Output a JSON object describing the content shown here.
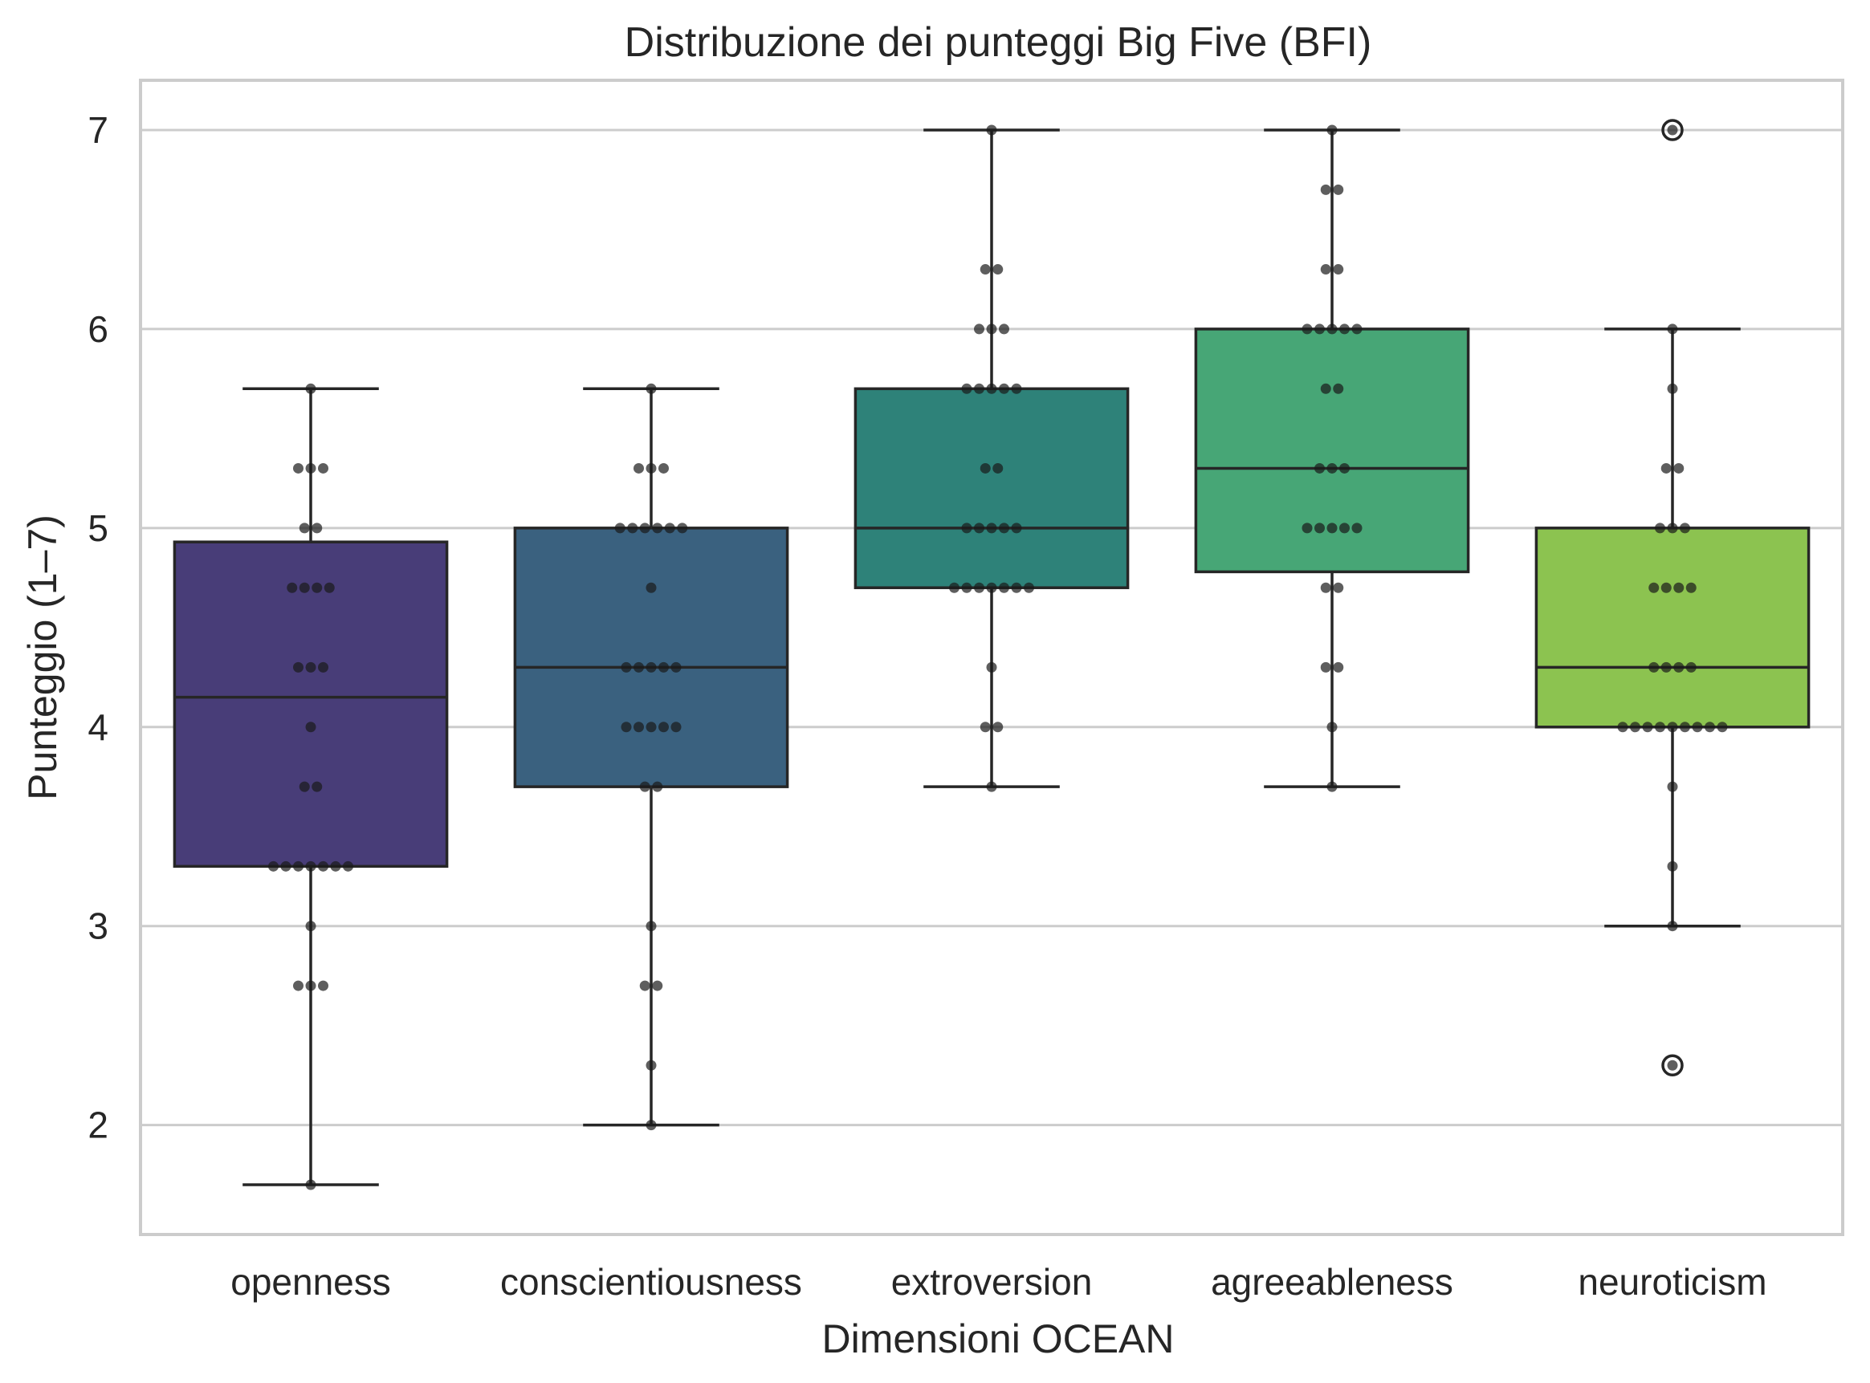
{
  "chart_data": {
    "type": "box",
    "title": "Distribuzione dei punteggi Big Five (BFI)",
    "xlabel": "Dimensioni OCEAN",
    "ylabel": "Punteggio (1–7)",
    "ylim": [
      1.45,
      7.25
    ],
    "yticks": [
      2,
      3,
      4,
      5,
      6,
      7
    ],
    "grid": "horizontal",
    "categories": [
      "openness",
      "conscientiousness",
      "extroversion",
      "agreeableness",
      "neuroticism"
    ],
    "box_colors": [
      "#483d78",
      "#3a617f",
      "#2e8279",
      "#47a676",
      "#8cc350"
    ],
    "boxes": [
      {
        "name": "openness",
        "whisker_low": 1.7,
        "q1": 3.3,
        "median": 4.15,
        "q3": 4.93,
        "whisker_high": 5.7,
        "outliers": []
      },
      {
        "name": "conscientiousness",
        "whisker_low": 2.0,
        "q1": 3.7,
        "median": 4.3,
        "q3": 5.0,
        "whisker_high": 5.7,
        "outliers": []
      },
      {
        "name": "extroversion",
        "whisker_low": 3.7,
        "q1": 4.7,
        "median": 5.0,
        "q3": 5.7,
        "whisker_high": 7.0,
        "outliers": []
      },
      {
        "name": "agreeableness",
        "whisker_low": 3.7,
        "q1": 4.78,
        "median": 5.3,
        "q3": 6.0,
        "whisker_high": 7.0,
        "outliers": []
      },
      {
        "name": "neuroticism",
        "whisker_low": 3.0,
        "q1": 4.0,
        "median": 4.3,
        "q3": 5.0,
        "whisker_high": 6.0,
        "outliers": [
          2.3,
          7.0
        ]
      }
    ],
    "swarm": [
      {
        "name": "openness",
        "values": [
          [
            5.7,
            1
          ],
          [
            5.3,
            3
          ],
          [
            5.0,
            2
          ],
          [
            4.7,
            4
          ],
          [
            4.3,
            3
          ],
          [
            4.0,
            1
          ],
          [
            3.7,
            2
          ],
          [
            3.3,
            7
          ],
          [
            3.0,
            1
          ],
          [
            2.7,
            3
          ],
          [
            1.7,
            1
          ]
        ]
      },
      {
        "name": "conscientiousness",
        "values": [
          [
            5.7,
            1
          ],
          [
            5.3,
            3
          ],
          [
            5.0,
            6
          ],
          [
            4.7,
            1
          ],
          [
            4.3,
            5
          ],
          [
            4.0,
            5
          ],
          [
            3.7,
            2
          ],
          [
            3.0,
            1
          ],
          [
            2.7,
            2
          ],
          [
            2.3,
            1
          ],
          [
            2.0,
            1
          ]
        ]
      },
      {
        "name": "extroversion",
        "values": [
          [
            7.0,
            1
          ],
          [
            6.3,
            2
          ],
          [
            6.0,
            3
          ],
          [
            5.7,
            5
          ],
          [
            5.3,
            2
          ],
          [
            5.0,
            5
          ],
          [
            4.7,
            7
          ],
          [
            4.3,
            1
          ],
          [
            4.0,
            2
          ],
          [
            3.7,
            1
          ]
        ]
      },
      {
        "name": "agreeableness",
        "values": [
          [
            7.0,
            1
          ],
          [
            6.7,
            2
          ],
          [
            6.3,
            2
          ],
          [
            6.0,
            5
          ],
          [
            5.7,
            2
          ],
          [
            5.3,
            3
          ],
          [
            5.0,
            5
          ],
          [
            4.7,
            2
          ],
          [
            4.3,
            2
          ],
          [
            4.0,
            1
          ],
          [
            3.7,
            1
          ]
        ]
      },
      {
        "name": "neuroticism",
        "values": [
          [
            7.0,
            1
          ],
          [
            6.0,
            1
          ],
          [
            5.7,
            1
          ],
          [
            5.3,
            2
          ],
          [
            5.0,
            3
          ],
          [
            4.7,
            4
          ],
          [
            4.3,
            4
          ],
          [
            4.0,
            9
          ],
          [
            3.7,
            1
          ],
          [
            3.3,
            1
          ],
          [
            3.0,
            1
          ],
          [
            2.3,
            1
          ]
        ]
      }
    ]
  }
}
